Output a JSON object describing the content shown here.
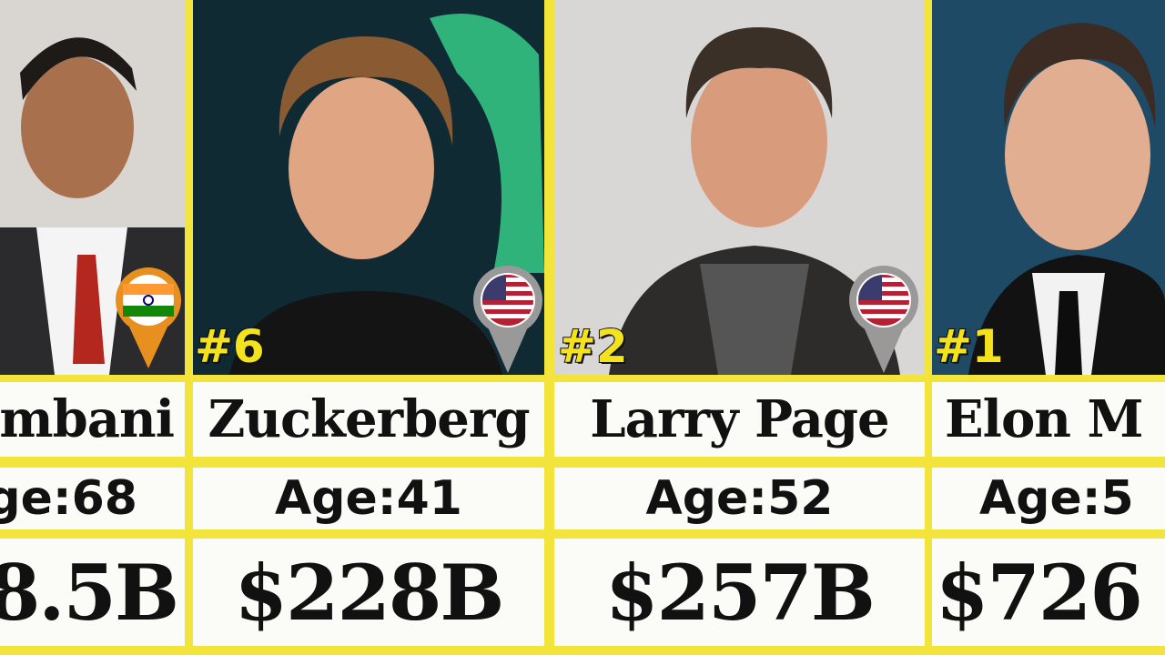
{
  "columns": [
    {
      "name": "mbani",
      "age": "ge:68",
      "net_worth": "8.5B"
    },
    {
      "rank": "#6",
      "name": "Zuckerberg",
      "age": "Age:41",
      "net_worth": "$228B"
    },
    {
      "rank": "#2",
      "name": "Larry Page",
      "age": "Age:52",
      "net_worth": "$257B"
    },
    {
      "rank": "#1",
      "name": "Elon M",
      "age": "Age:5",
      "net_worth": "$726"
    }
  ]
}
